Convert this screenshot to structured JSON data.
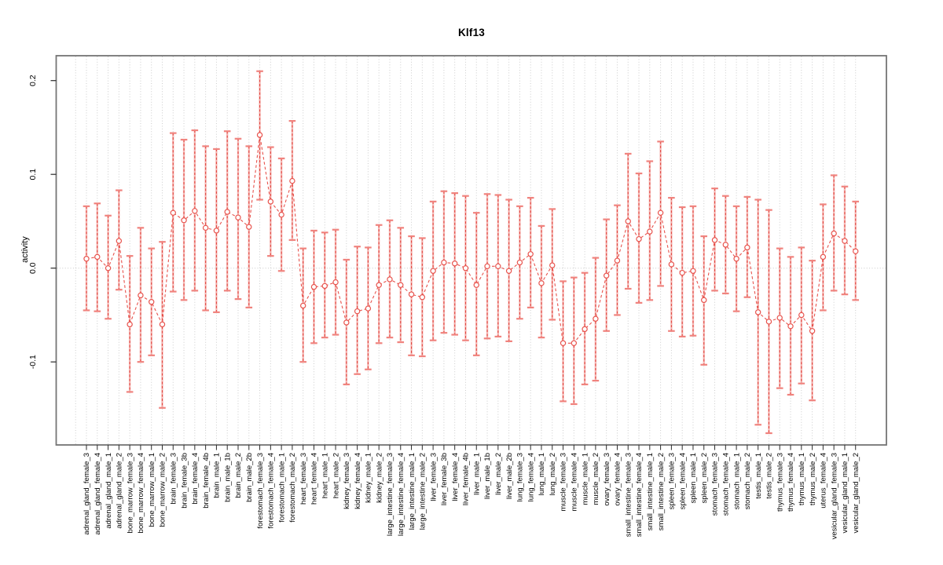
{
  "chart_data": {
    "type": "line",
    "subtype": "points_with_error_bars",
    "title": "Klf13",
    "xlabel": "",
    "ylabel": "activity",
    "ylim": [
      -0.189,
      0.226
    ],
    "grid": "vertical dotted line per category; dotted horizontal line at 0",
    "legend_position": "none",
    "yticks": [
      {
        "value": -0.1,
        "label": "-0.1"
      },
      {
        "value": 0.0,
        "label": "0.0"
      },
      {
        "value": 0.1,
        "label": "0.1"
      },
      {
        "value": 0.2,
        "label": "0.2"
      }
    ],
    "categories": [
      "adrenal_gland_female_3",
      "adrenal_gland_female_4",
      "adrenal_gland_male_1",
      "adrenal_gland_male_2",
      "bone_marrow_female_3",
      "bone_marrow_female_4",
      "bone_marrow_male_1",
      "bone_marrow_male_2",
      "brain_female_3",
      "brain_female_3b",
      "brain_female_4",
      "brain_female_4b",
      "brain_male_1",
      "brain_male_1b",
      "brain_male_2",
      "brain_male_2b",
      "forestomach_female_3",
      "forestomach_female_4",
      "forestomach_male_1",
      "forestomach_male_2",
      "heart_female_3",
      "heart_female_4",
      "heart_male_1",
      "heart_male_2",
      "kidney_female_3",
      "kidney_female_4",
      "kidney_male_1",
      "kidney_male_2",
      "large_intestine_female_3",
      "large_intestine_female_4",
      "large_intestine_male_1",
      "large_intestine_male_2",
      "liver_female_3",
      "liver_female_3b",
      "liver_female_4",
      "liver_female_4b",
      "liver_male_1",
      "liver_male_1b",
      "liver_male_2",
      "liver_male_2b",
      "lung_female_3",
      "lung_female_4",
      "lung_male_1",
      "lung_male_2",
      "muscle_female_3",
      "muscle_female_4",
      "muscle_male_1",
      "muscle_male_2",
      "ovary_female_3",
      "ovary_female_4",
      "small_intestine_female_3",
      "small_intestine_female_4",
      "small_intestine_male_1",
      "small_intestine_male_2",
      "spleen_female_3",
      "spleen_female_4",
      "spleen_male_1",
      "spleen_male_2",
      "stomach_female_3",
      "stomach_female_4",
      "stomach_male_1",
      "stomach_male_2",
      "testis_male_1",
      "testis_male_2",
      "thymus_female_3",
      "thymus_female_4",
      "thymus_male_1",
      "thymus_male_2",
      "uterus_female_4",
      "vesicular_gland_female_3",
      "vesicular_gland_male_1",
      "vesicular_gland_male_2"
    ],
    "values": [
      0.01,
      0.012,
      0.0,
      0.029,
      -0.06,
      -0.029,
      -0.036,
      -0.06,
      0.059,
      0.051,
      0.061,
      0.043,
      0.04,
      0.06,
      0.054,
      0.044,
      0.142,
      0.071,
      0.057,
      0.093,
      -0.04,
      -0.02,
      -0.019,
      -0.015,
      -0.058,
      -0.046,
      -0.043,
      -0.018,
      -0.012,
      -0.018,
      -0.028,
      -0.031,
      -0.003,
      0.006,
      0.005,
      0.0,
      -0.018,
      0.002,
      0.002,
      -0.003,
      0.006,
      0.015,
      -0.016,
      0.003,
      -0.08,
      -0.08,
      -0.065,
      -0.054,
      -0.008,
      0.008,
      0.05,
      0.031,
      0.039,
      0.059,
      0.004,
      -0.005,
      -0.003,
      -0.034,
      0.03,
      0.025,
      0.01,
      0.022,
      -0.047,
      -0.057,
      -0.053,
      -0.062,
      -0.05,
      -0.067,
      0.012,
      0.037,
      0.029,
      0.018
    ],
    "ci_low": [
      -0.045,
      -0.046,
      -0.054,
      -0.023,
      -0.132,
      -0.1,
      -0.093,
      -0.149,
      -0.025,
      -0.034,
      -0.024,
      -0.045,
      -0.047,
      -0.024,
      -0.033,
      -0.042,
      0.073,
      0.013,
      -0.003,
      0.03,
      -0.1,
      -0.08,
      -0.074,
      -0.071,
      -0.124,
      -0.113,
      -0.108,
      -0.08,
      -0.074,
      -0.079,
      -0.093,
      -0.094,
      -0.077,
      -0.069,
      -0.071,
      -0.077,
      -0.093,
      -0.075,
      -0.073,
      -0.078,
      -0.054,
      -0.042,
      -0.074,
      -0.055,
      -0.142,
      -0.145,
      -0.124,
      -0.12,
      -0.067,
      -0.05,
      -0.022,
      -0.037,
      -0.034,
      -0.019,
      -0.067,
      -0.073,
      -0.072,
      -0.103,
      -0.024,
      -0.027,
      -0.046,
      -0.031,
      -0.167,
      -0.176,
      -0.128,
      -0.135,
      -0.123,
      -0.141,
      -0.045,
      -0.024,
      -0.028,
      -0.034
    ],
    "ci_high": [
      0.066,
      0.069,
      0.056,
      0.083,
      0.013,
      0.043,
      0.021,
      0.028,
      0.144,
      0.137,
      0.147,
      0.13,
      0.127,
      0.146,
      0.138,
      0.13,
      0.21,
      0.129,
      0.117,
      0.157,
      0.021,
      0.04,
      0.038,
      0.041,
      0.009,
      0.023,
      0.022,
      0.046,
      0.051,
      0.043,
      0.034,
      0.032,
      0.071,
      0.082,
      0.08,
      0.077,
      0.059,
      0.079,
      0.078,
      0.073,
      0.066,
      0.075,
      0.045,
      0.063,
      -0.014,
      -0.01,
      -0.005,
      0.011,
      0.052,
      0.067,
      0.122,
      0.101,
      0.114,
      0.135,
      0.075,
      0.065,
      0.066,
      0.034,
      0.085,
      0.077,
      0.066,
      0.076,
      0.073,
      0.062,
      0.021,
      0.012,
      0.022,
      0.008,
      0.068,
      0.099,
      0.087,
      0.071
    ]
  },
  "colors": {
    "point_line": "#e8534d",
    "errorbar_solid": "#f3918b",
    "errorbar_dash": "#e03b35",
    "cap": "#f0837e",
    "grid": "#cccccc",
    "zero_line": "#c8c8c8",
    "box": "#757575",
    "tick": "#2b2b2b",
    "text": "#000000"
  }
}
